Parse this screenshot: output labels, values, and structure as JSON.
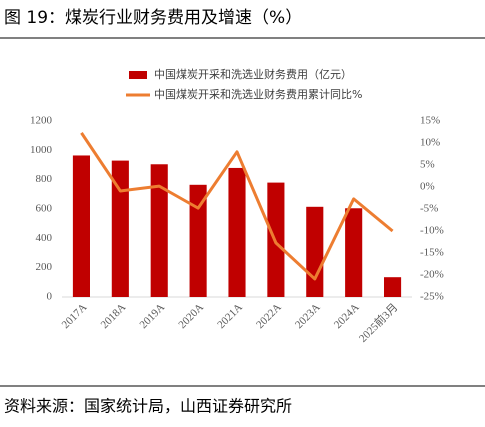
{
  "chart_data": {
    "type": "bar",
    "title": "图 19：煤炭行业财务费用及增速（%）",
    "source": "资料来源：国家统计局，山西证券研究所",
    "categories": [
      "2017A",
      "2018A",
      "2019A",
      "2020A",
      "2021A",
      "2022A",
      "2023A",
      "2024A",
      "2025前3月"
    ],
    "series": [
      {
        "name": "中国煤炭开采和洗选业财务费用（亿元）",
        "type": "bar",
        "color": "#c00000",
        "axis": "y",
        "values": [
          965,
          930,
          905,
          765,
          880,
          780,
          615,
          605,
          135
        ]
      },
      {
        "name": "中国煤炭开采和洗选业财务费用累计同比%",
        "type": "line",
        "color": "#ed7d31",
        "axis": "y2",
        "values": [
          12.3,
          -0.9,
          0.2,
          -4.8,
          8.0,
          -12.7,
          -20.9,
          -2.7,
          -10.0
        ]
      }
    ],
    "ylim": [
      0,
      1200
    ],
    "yticks": [
      0,
      200,
      400,
      600,
      800,
      1000,
      1200
    ],
    "y2lim": [
      -25,
      15
    ],
    "y2ticks": [
      {
        "value": -25,
        "label": "-25%"
      },
      {
        "value": -20,
        "label": "-20%"
      },
      {
        "value": -15,
        "label": "-15%"
      },
      {
        "value": -10,
        "label": "-10%"
      },
      {
        "value": -5,
        "label": "-5%"
      },
      {
        "value": 0,
        "label": "0%"
      },
      {
        "value": 5,
        "label": "5%"
      },
      {
        "value": 10,
        "label": "10%"
      },
      {
        "value": 15,
        "label": "15%"
      }
    ],
    "grid": false
  }
}
